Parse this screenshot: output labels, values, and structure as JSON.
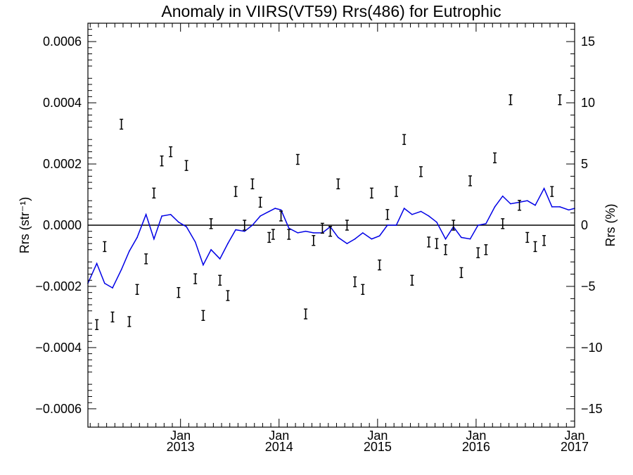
{
  "chart_data": {
    "type": "line",
    "title": "Anomaly in VIIRS(VT59) Rrs(486) for Eutrophic",
    "ylabel_left": "Rrs (str⁻¹)",
    "ylabel_right": "Rrs (%)",
    "xlabel": "",
    "xlim": [
      2012.06,
      2017.0
    ],
    "ylim": [
      -0.00066,
      0.00066
    ],
    "ylim_right": [
      -16.5,
      16.5
    ],
    "x_ticks": [
      {
        "x": 2013.0,
        "label": "Jan\n2013"
      },
      {
        "x": 2014.0,
        "label": "Jan\n2014"
      },
      {
        "x": 2015.0,
        "label": "Jan\n2015"
      },
      {
        "x": 2016.0,
        "label": "Jan\n2016"
      },
      {
        "x": 2017.0,
        "label": "Jan\n2017"
      }
    ],
    "y_ticks": [
      {
        "v": 0.0006,
        "label": "0.0006"
      },
      {
        "v": 0.0004,
        "label": "0.0004"
      },
      {
        "v": 0.0002,
        "label": "0.0002"
      },
      {
        "v": 0.0,
        "label": "0.0000"
      },
      {
        "v": -0.0002,
        "label": "−0.0002"
      },
      {
        "v": -0.0004,
        "label": "−0.0004"
      },
      {
        "v": -0.0006,
        "label": "−0.0006"
      }
    ],
    "y_ticks_right": [
      {
        "v": 15,
        "label": "15"
      },
      {
        "v": 10,
        "label": "10"
      },
      {
        "v": 5,
        "label": "5"
      },
      {
        "v": 0,
        "label": "0"
      },
      {
        "v": -5,
        "label": "−5"
      },
      {
        "v": -10,
        "label": "−10"
      },
      {
        "v": -15,
        "label": "−15"
      }
    ],
    "reference_line": 0,
    "series": [
      {
        "type": "line",
        "color": "#0000e6",
        "points": [
          [
            2012.06,
            -0.00019
          ],
          [
            2012.15,
            -0.000125
          ],
          [
            2012.23,
            -0.00019
          ],
          [
            2012.31,
            -0.000205
          ],
          [
            2012.4,
            -0.000145
          ],
          [
            2012.48,
            -8.5e-05
          ],
          [
            2012.56,
            -4e-05
          ],
          [
            2012.65,
            3.5e-05
          ],
          [
            2012.73,
            -4.5e-05
          ],
          [
            2012.81,
            3e-05
          ],
          [
            2012.9,
            3.5e-05
          ],
          [
            2012.98,
            1e-05
          ],
          [
            2013.06,
            -5e-06
          ],
          [
            2013.15,
            -5.5e-05
          ],
          [
            2013.23,
            -0.00013
          ],
          [
            2013.31,
            -8e-05
          ],
          [
            2013.4,
            -0.00011
          ],
          [
            2013.48,
            -6e-05
          ],
          [
            2013.56,
            -1.5e-05
          ],
          [
            2013.65,
            -2e-05
          ],
          [
            2013.73,
            0.0
          ],
          [
            2013.81,
            3e-05
          ],
          [
            2013.9,
            4.5e-05
          ],
          [
            2013.96,
            5.5e-05
          ],
          [
            2014.02,
            5e-05
          ],
          [
            2014.1,
            -1e-05
          ],
          [
            2014.19,
            -2.5e-05
          ],
          [
            2014.27,
            -2e-05
          ],
          [
            2014.35,
            -2.5e-05
          ],
          [
            2014.44,
            -2.5e-05
          ],
          [
            2014.52,
            -5e-06
          ],
          [
            2014.6,
            -4e-05
          ],
          [
            2014.69,
            -6e-05
          ],
          [
            2014.77,
            -4.5e-05
          ],
          [
            2014.85,
            -2.5e-05
          ],
          [
            2014.94,
            -4.5e-05
          ],
          [
            2015.02,
            -3.5e-05
          ],
          [
            2015.1,
            0.0
          ],
          [
            2015.19,
            0.0
          ],
          [
            2015.27,
            5.5e-05
          ],
          [
            2015.35,
            3.5e-05
          ],
          [
            2015.44,
            4.5e-05
          ],
          [
            2015.52,
            3e-05
          ],
          [
            2015.6,
            1e-05
          ],
          [
            2015.69,
            -4.5e-05
          ],
          [
            2015.77,
            -5e-06
          ],
          [
            2015.85,
            -4e-05
          ],
          [
            2015.94,
            -4.5e-05
          ],
          [
            2016.02,
            0.0
          ],
          [
            2016.1,
            5e-06
          ],
          [
            2016.19,
            6e-05
          ],
          [
            2016.27,
            9.5e-05
          ],
          [
            2016.35,
            7e-05
          ],
          [
            2016.44,
            7.5e-05
          ],
          [
            2016.52,
            8e-05
          ],
          [
            2016.6,
            6.5e-05
          ],
          [
            2016.69,
            0.00012
          ],
          [
            2016.77,
            6e-05
          ],
          [
            2016.85,
            6e-05
          ],
          [
            2016.94,
            5e-05
          ],
          [
            2017.0,
            5.5e-05
          ]
        ]
      },
      {
        "type": "errorbar",
        "color": "#000000",
        "points": [
          [
            2012.15,
            -0.000325
          ],
          [
            2012.23,
            -7e-05
          ],
          [
            2012.31,
            -0.0003
          ],
          [
            2012.4,
            0.00033
          ],
          [
            2012.48,
            -0.000315
          ],
          [
            2012.56,
            -0.00021
          ],
          [
            2012.65,
            -0.00011
          ],
          [
            2012.73,
            0.000105
          ],
          [
            2012.81,
            0.00021
          ],
          [
            2012.9,
            0.00024
          ],
          [
            2012.98,
            -0.00022
          ],
          [
            2013.06,
            0.000195
          ],
          [
            2013.15,
            -0.000175
          ],
          [
            2013.23,
            -0.000295
          ],
          [
            2013.31,
            5e-06
          ],
          [
            2013.4,
            -0.00018
          ],
          [
            2013.48,
            -0.00023
          ],
          [
            2013.56,
            0.00011
          ],
          [
            2013.65,
            0.0
          ],
          [
            2013.73,
            0.000135
          ],
          [
            2013.81,
            7.5e-05
          ],
          [
            2013.9,
            -4e-05
          ],
          [
            2013.94,
            -3e-05
          ],
          [
            2014.02,
            3e-05
          ],
          [
            2014.1,
            -3e-05
          ],
          [
            2014.19,
            0.000215
          ],
          [
            2014.27,
            -0.00029
          ],
          [
            2014.35,
            -5e-05
          ],
          [
            2014.44,
            -1e-05
          ],
          [
            2014.52,
            -2e-05
          ],
          [
            2014.6,
            0.000135
          ],
          [
            2014.69,
            0.0
          ],
          [
            2014.77,
            -0.000185
          ],
          [
            2014.85,
            -0.00021
          ],
          [
            2014.94,
            0.000105
          ],
          [
            2015.02,
            -0.00013
          ],
          [
            2015.1,
            3.5e-05
          ],
          [
            2015.19,
            0.00011
          ],
          [
            2015.27,
            0.00028
          ],
          [
            2015.35,
            -0.00018
          ],
          [
            2015.44,
            0.000175
          ],
          [
            2015.52,
            -5.5e-05
          ],
          [
            2015.6,
            -6e-05
          ],
          [
            2015.69,
            -8e-05
          ],
          [
            2015.77,
            0.0
          ],
          [
            2015.85,
            -0.000155
          ],
          [
            2015.94,
            0.000145
          ],
          [
            2016.02,
            -9e-05
          ],
          [
            2016.1,
            -8e-05
          ],
          [
            2016.19,
            0.00022
          ],
          [
            2016.27,
            5e-06
          ],
          [
            2016.35,
            0.00041
          ],
          [
            2016.44,
            6.5e-05
          ],
          [
            2016.52,
            -4e-05
          ],
          [
            2016.6,
            -7e-05
          ],
          [
            2016.69,
            -5e-05
          ],
          [
            2016.77,
            0.00011
          ],
          [
            2016.85,
            0.00041
          ]
        ]
      }
    ]
  }
}
